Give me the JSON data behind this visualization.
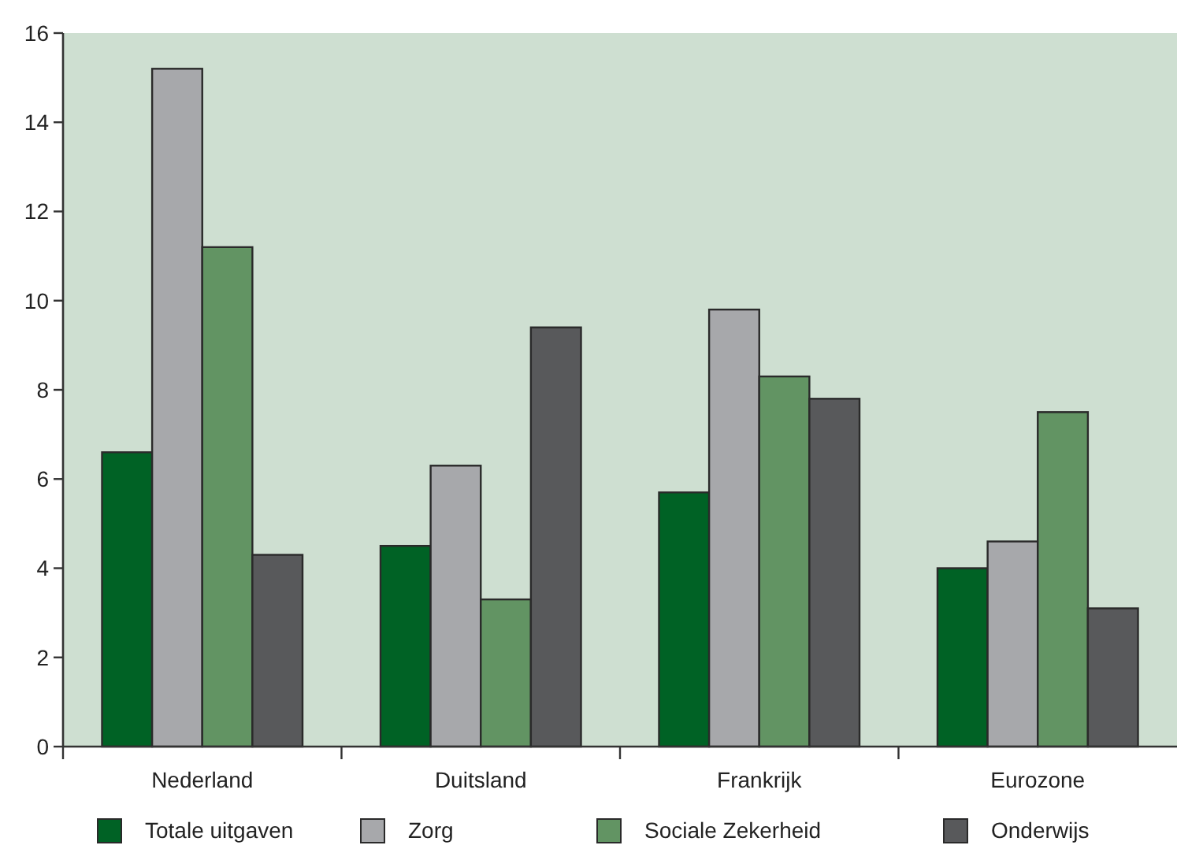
{
  "chart_data": {
    "type": "bar",
    "categories": [
      "Nederland",
      "Duitsland",
      "Frankrijk",
      "Eurozone"
    ],
    "series": [
      {
        "name": "Totale uitgaven",
        "color": "#006225",
        "values": [
          6.6,
          4.5,
          5.7,
          4.0
        ]
      },
      {
        "name": "Zorg",
        "color": "#a7a8ab",
        "values": [
          15.2,
          6.3,
          9.8,
          4.6
        ]
      },
      {
        "name": "Sociale Zekerheid",
        "color": "#629463",
        "values": [
          11.2,
          3.3,
          8.3,
          7.5
        ]
      },
      {
        "name": "Onderwijs",
        "color": "#58595b",
        "values": [
          4.3,
          9.4,
          7.8,
          3.1
        ]
      }
    ],
    "ylim": [
      0,
      16
    ],
    "yticks": [
      0,
      2,
      4,
      6,
      8,
      10,
      12,
      14,
      16
    ],
    "grid": false,
    "legend": "bottom"
  }
}
